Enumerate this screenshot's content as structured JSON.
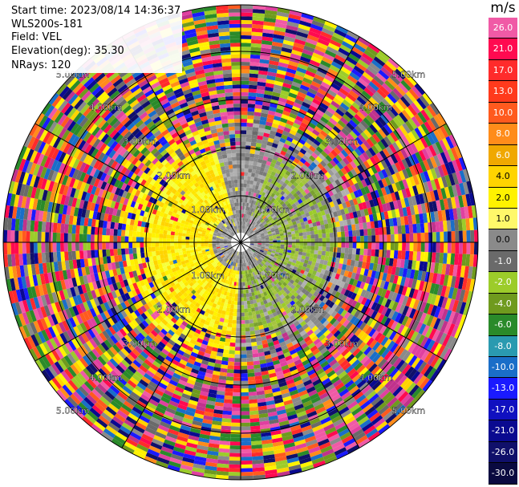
{
  "info": {
    "start_time": "Start time: 2023/08/14 14:36:37",
    "station": "WLS200s-181",
    "field": "Field: VEL",
    "elevation": "Elevation(deg): 35.30",
    "nrays": "NRays: 120"
  },
  "rings": {
    "labels": [
      "1.00km",
      "2.00km",
      "3.00km",
      "4.00km",
      "5.00km"
    ]
  },
  "colorbar": {
    "unit": "m/s",
    "levels": [
      {
        "label": "26.0",
        "color": "#f05aa6",
        "text": "#ffffff"
      },
      {
        "label": "21.0",
        "color": "#ff0a50",
        "text": "#ffffff"
      },
      {
        "label": "17.0",
        "color": "#ff2b2b",
        "text": "#ffffff"
      },
      {
        "label": "13.0",
        "color": "#ff3a1c",
        "text": "#ffffff"
      },
      {
        "label": "10.0",
        "color": "#ff5a1e",
        "text": "#ffffff"
      },
      {
        "label": "8.0",
        "color": "#ff8c1a",
        "text": "#ffffff"
      },
      {
        "label": "6.0",
        "color": "#f0a800",
        "text": "#ffffff"
      },
      {
        "label": "4.0",
        "color": "#ffd400",
        "text": "#000000"
      },
      {
        "label": "2.0",
        "color": "#fff200",
        "text": "#000000"
      },
      {
        "label": "1.0",
        "color": "#fff86a",
        "text": "#000000"
      },
      {
        "label": "0.0",
        "color": "#8a8a8a",
        "text": "#000000"
      },
      {
        "label": "-1.0",
        "color": "#6a6a6a",
        "text": "#ffffff"
      },
      {
        "label": "-2.0",
        "color": "#9ccc2a",
        "text": "#ffffff"
      },
      {
        "label": "-4.0",
        "color": "#6f9a1e",
        "text": "#ffffff"
      },
      {
        "label": "-6.0",
        "color": "#2a8a2a",
        "text": "#ffffff"
      },
      {
        "label": "-8.0",
        "color": "#2a9ab0",
        "text": "#ffffff"
      },
      {
        "label": "-10.0",
        "color": "#1a6ec8",
        "text": "#ffffff"
      },
      {
        "label": "-13.0",
        "color": "#1a1aff",
        "text": "#ffffff"
      },
      {
        "label": "-17.0",
        "color": "#1010c0",
        "text": "#ffffff"
      },
      {
        "label": "-21.0",
        "color": "#0a0a90",
        "text": "#ffffff"
      },
      {
        "label": "-26.0",
        "color": "#10106a",
        "text": "#ffffff"
      },
      {
        "label": "-30.0",
        "color": "#0a0a40",
        "text": "#ffffff"
      }
    ]
  },
  "palette": {
    "noise": [
      "#f05aa6",
      "#ff0a50",
      "#ff2b2b",
      "#ff5a1e",
      "#ff8c1a",
      "#ffd400",
      "#fff200",
      "#2a8a2a",
      "#1a1aff",
      "#0a0a90",
      "#10106a",
      "#6a6a6a",
      "#8a8a8a",
      "#9ccc2a",
      "#6f9a1e",
      "#c0328c",
      "#e040a0",
      "#1a6ec8"
    ],
    "yellow": [
      "#fff200",
      "#ffe600",
      "#f6ff3a",
      "#ffd400"
    ],
    "green": [
      "#9ccc2a",
      "#8ab838",
      "#a6c440",
      "#7aa030"
    ],
    "gray": [
      "#8a8a8a",
      "#9a9a9a",
      "#7a7a7a",
      "#b0b0b0"
    ]
  }
}
